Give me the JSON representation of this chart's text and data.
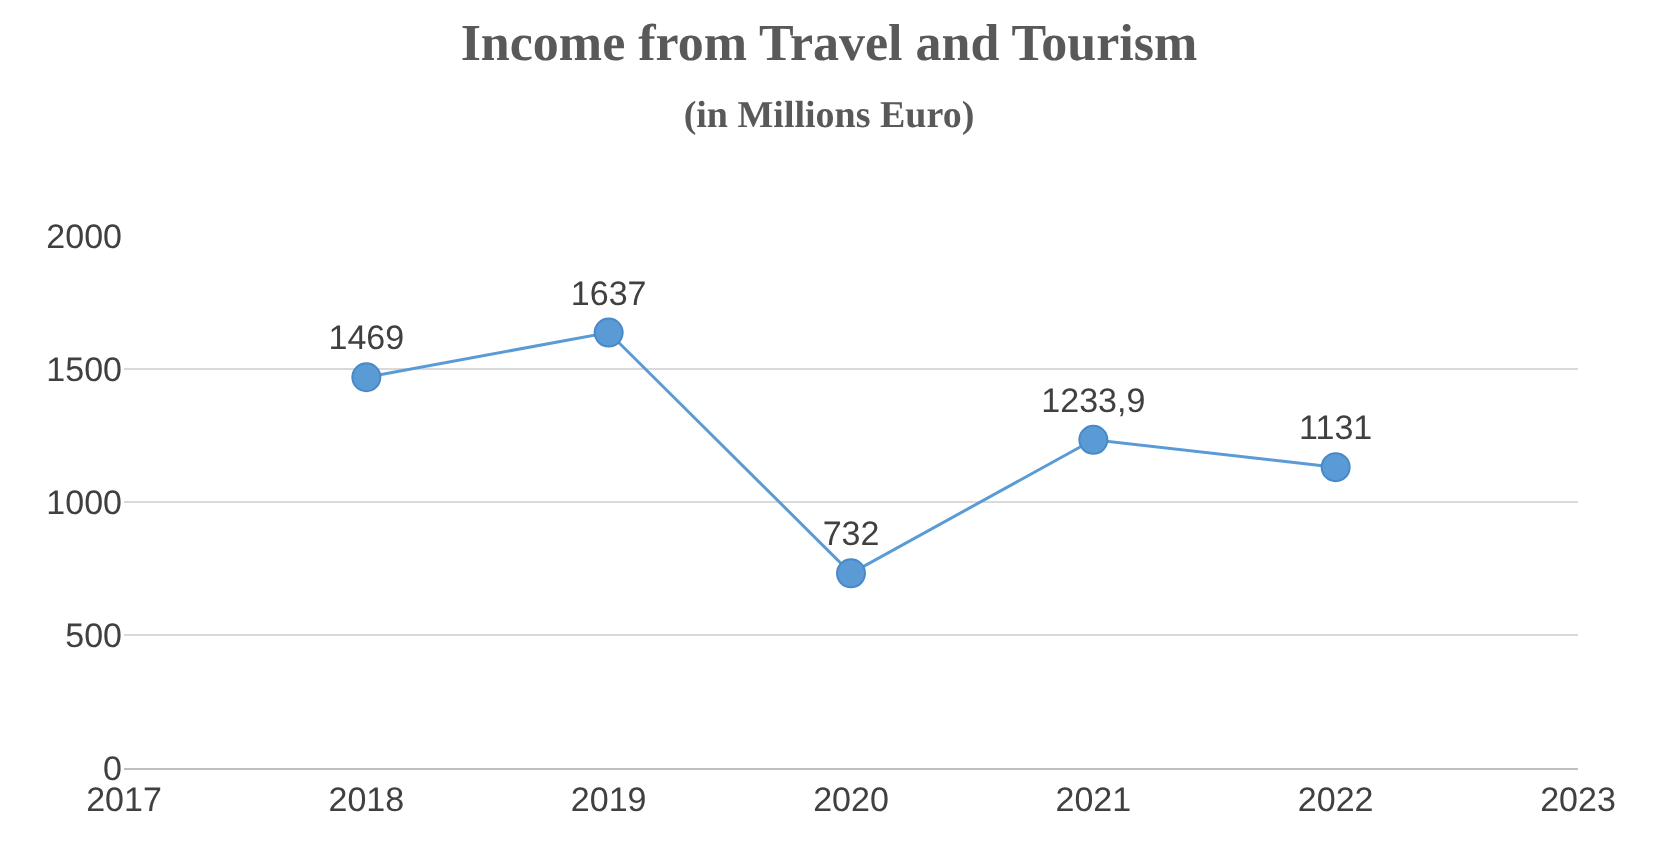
{
  "chart_data": {
    "type": "line",
    "title": "Income from Travel and Tourism",
    "subtitle": "(in Millions Euro)",
    "x": [
      2018,
      2019,
      2020,
      2021,
      2022
    ],
    "series": [
      {
        "color": "#5b9bd5",
        "values": [
          1469,
          1637,
          732,
          1233.9,
          1131
        ],
        "value_labels": [
          "1469",
          "1637",
          "732",
          "1233,9",
          "1131"
        ]
      }
    ],
    "xlim": [
      2017,
      2023
    ],
    "xticks": [
      2017,
      2018,
      2019,
      2020,
      2021,
      2022,
      2023
    ],
    "ylim": [
      0,
      2000
    ],
    "yticks": [
      0,
      500,
      1000,
      1500,
      2000
    ],
    "grid": "y",
    "marker": "circle",
    "line_style": "solid"
  }
}
